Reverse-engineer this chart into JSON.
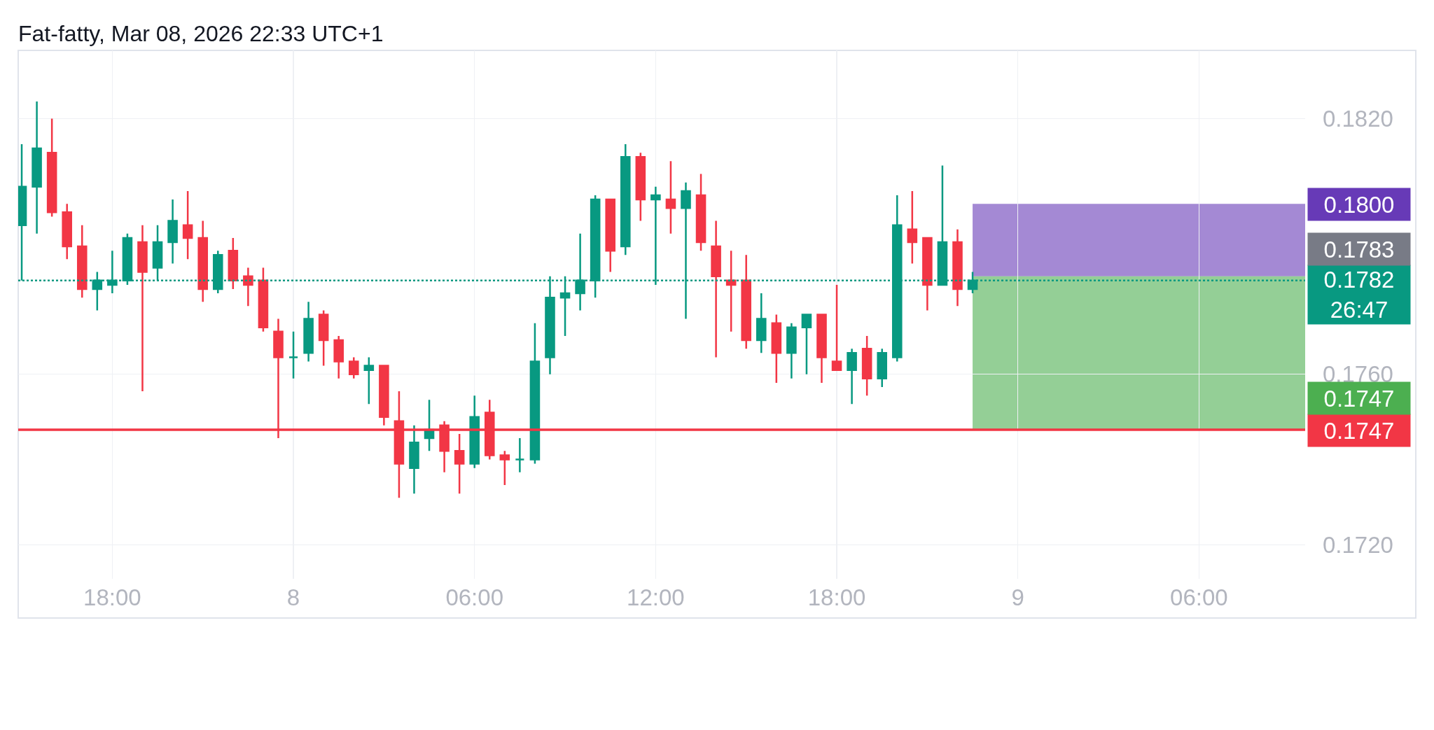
{
  "chart_data": {
    "type": "candlestick",
    "title": "Fat-fatty, Mar 08, 2026 22:33 UTC+1",
    "x": [
      "2026-03-07T15:00",
      "2026-03-07T15:30",
      "2026-03-07T16:00",
      "2026-03-07T16:30",
      "2026-03-07T17:00",
      "2026-03-07T17:30",
      "2026-03-07T18:00",
      "2026-03-07T18:30",
      "2026-03-07T19:00",
      "2026-03-07T19:30",
      "2026-03-07T20:00",
      "2026-03-07T20:30",
      "2026-03-07T21:00",
      "2026-03-07T21:30",
      "2026-03-07T22:00",
      "2026-03-07T22:30",
      "2026-03-07T23:00",
      "2026-03-07T23:30",
      "2026-03-08T00:00",
      "2026-03-08T00:30",
      "2026-03-08T01:00",
      "2026-03-08T01:30",
      "2026-03-08T02:00",
      "2026-03-08T02:30",
      "2026-03-08T03:00",
      "2026-03-08T03:30",
      "2026-03-08T04:00",
      "2026-03-08T04:30",
      "2026-03-08T05:00",
      "2026-03-08T05:30",
      "2026-03-08T06:00",
      "2026-03-08T06:30",
      "2026-03-08T07:00",
      "2026-03-08T07:30",
      "2026-03-08T08:00",
      "2026-03-08T08:30",
      "2026-03-08T09:00",
      "2026-03-08T09:30",
      "2026-03-08T10:00",
      "2026-03-08T10:30",
      "2026-03-08T11:00",
      "2026-03-08T11:30",
      "2026-03-08T12:00",
      "2026-03-08T12:30",
      "2026-03-08T13:00",
      "2026-03-08T13:30",
      "2026-03-08T14:00",
      "2026-03-08T14:30",
      "2026-03-08T15:00",
      "2026-03-08T15:30",
      "2026-03-08T16:00",
      "2026-03-08T16:30",
      "2026-03-08T17:00",
      "2026-03-08T17:30",
      "2026-03-08T18:00",
      "2026-03-08T18:30",
      "2026-03-08T19:00",
      "2026-03-08T19:30",
      "2026-03-08T20:00",
      "2026-03-08T20:30",
      "2026-03-08T21:00",
      "2026-03-08T21:30",
      "2026-03-08T22:00",
      "2026-03-08T22:30"
    ],
    "ohlc": [
      [
        0.1795,
        0.1814,
        0.1782,
        0.1804
      ],
      [
        0.1804,
        0.1824,
        0.1793,
        0.1813
      ],
      [
        0.1812,
        0.182,
        0.1797,
        0.1798
      ],
      [
        0.1798,
        0.18,
        0.1787,
        0.179
      ],
      [
        0.179,
        0.1795,
        0.1778,
        0.178
      ],
      [
        0.178,
        0.1784,
        0.1775,
        0.1782
      ],
      [
        0.1781,
        0.1789,
        0.1779,
        0.1782
      ],
      [
        0.1782,
        0.1793,
        0.1781,
        0.1792
      ],
      [
        0.1791,
        0.1795,
        0.1756,
        0.1784
      ],
      [
        0.1785,
        0.1795,
        0.1782,
        0.1791
      ],
      [
        0.1791,
        0.1801,
        0.1786,
        0.1796
      ],
      [
        0.1795,
        0.1803,
        0.1787,
        0.1792
      ],
      [
        0.1792,
        0.1796,
        0.1777,
        0.178
      ],
      [
        0.178,
        0.1789,
        0.1779,
        0.1788
      ],
      [
        0.1789,
        0.1792,
        0.178,
        0.1782
      ],
      [
        0.1783,
        0.1785,
        0.1776,
        0.1781
      ],
      [
        0.1782,
        0.1785,
        0.177,
        0.1771
      ],
      [
        0.177,
        0.1773,
        0.1745,
        0.1764
      ],
      [
        0.1764,
        0.177,
        0.1759,
        0.1764
      ],
      [
        0.1765,
        0.1777,
        0.1763,
        0.1773
      ],
      [
        0.1774,
        0.1775,
        0.1762,
        0.1768
      ],
      [
        0.1768,
        0.1769,
        0.1759,
        0.1763
      ],
      [
        0.1763,
        0.1764,
        0.1759,
        0.176
      ],
      [
        0.1761,
        0.1764,
        0.1753,
        0.1762
      ],
      [
        0.1762,
        0.1762,
        0.1748,
        0.175
      ],
      [
        0.1749,
        0.1756,
        0.1731,
        0.1739
      ],
      [
        0.1738,
        0.1748,
        0.1732,
        0.1744
      ],
      [
        0.1745,
        0.1754,
        0.1742,
        0.1747
      ],
      [
        0.1748,
        0.1749,
        0.1737,
        0.1742
      ],
      [
        0.1742,
        0.1746,
        0.1732,
        0.1739
      ],
      [
        0.1739,
        0.1755,
        0.1738,
        0.175
      ],
      [
        0.1751,
        0.1754,
        0.174,
        0.1741
      ],
      [
        0.1741,
        0.1742,
        0.1734,
        0.174
      ],
      [
        0.174,
        0.1745,
        0.1737,
        0.174
      ],
      [
        0.174,
        0.1772,
        0.1739,
        0.1763
      ],
      [
        0.1764,
        0.1783,
        0.176,
        0.1778
      ],
      [
        0.1778,
        0.1783,
        0.1769,
        0.1779
      ],
      [
        0.1779,
        0.1793,
        0.1775,
        0.1782
      ],
      [
        0.1782,
        0.1802,
        0.1778,
        0.1801
      ],
      [
        0.1801,
        0.1801,
        0.1784,
        0.1789
      ],
      [
        0.179,
        0.1814,
        0.1788,
        0.1811
      ],
      [
        0.1811,
        0.1812,
        0.1796,
        0.1801
      ],
      [
        0.1801,
        0.1804,
        0.1781,
        0.1802
      ],
      [
        0.1801,
        0.181,
        0.1793,
        0.1799
      ],
      [
        0.1799,
        0.1805,
        0.1773,
        0.1803
      ],
      [
        0.1802,
        0.1807,
        0.1789,
        0.1791
      ],
      [
        0.179,
        0.1796,
        0.1764,
        0.1783
      ],
      [
        0.1782,
        0.1789,
        0.177,
        0.1781
      ],
      [
        0.1782,
        0.1788,
        0.1766,
        0.1768
      ],
      [
        0.1768,
        0.1779,
        0.1765,
        0.1773
      ],
      [
        0.1772,
        0.1774,
        0.1758,
        0.1765
      ],
      [
        0.1765,
        0.1772,
        0.1759,
        0.1771
      ],
      [
        0.1771,
        0.1774,
        0.176,
        0.1774
      ],
      [
        0.1774,
        0.1774,
        0.1758,
        0.1764
      ],
      [
        0.1763,
        0.1781,
        0.1761,
        0.1761
      ],
      [
        0.1761,
        0.1766,
        0.1753,
        0.1765
      ],
      [
        0.1766,
        0.1769,
        0.1755,
        0.1759
      ],
      [
        0.1759,
        0.1766,
        0.1757,
        0.1765
      ],
      [
        0.1764,
        0.1802,
        0.1763,
        0.1795
      ],
      [
        0.1794,
        0.1803,
        0.1786,
        0.1791
      ],
      [
        0.1792,
        0.1792,
        0.1775,
        0.1781
      ],
      [
        0.1781,
        0.1809,
        0.1781,
        0.1791
      ],
      [
        0.1791,
        0.1794,
        0.1776,
        0.178
      ],
      [
        0.178,
        0.1784,
        0.1779,
        0.1782
      ]
    ],
    "colors": [
      "#089981",
      "#089981",
      "#f23645",
      "#f23645",
      "#f23645",
      "#089981",
      "#089981",
      "#089981",
      "#f23645",
      "#089981",
      "#089981",
      "#f23645",
      "#f23645",
      "#089981",
      "#f23645",
      "#f23645",
      "#f23645",
      "#f23645",
      "#089981",
      "#089981",
      "#f23645",
      "#f23645",
      "#f23645",
      "#089981",
      "#f23645",
      "#f23645",
      "#089981",
      "#089981",
      "#f23645",
      "#f23645",
      "#089981",
      "#f23645",
      "#f23645",
      "#089981",
      "#089981",
      "#089981",
      "#089981",
      "#089981",
      "#089981",
      "#f23645",
      "#089981",
      "#f23645",
      "#089981",
      "#f23645",
      "#089981",
      "#f23645",
      "#f23645",
      "#f23645",
      "#f23645",
      "#089981",
      "#f23645",
      "#089981",
      "#089981",
      "#f23645",
      "#f23645",
      "#089981",
      "#f23645",
      "#089981",
      "#089981",
      "#f23645",
      "#f23645",
      "#089981",
      "#f23645",
      "#089981"
    ],
    "xlim": [
      "2026-03-07T14:53",
      "2026-03-09T09:31"
    ],
    "xticks": [
      {
        "value": "2026-03-07T18:00",
        "label": "18:00"
      },
      {
        "value": "2026-03-08",
        "label": "8"
      },
      {
        "value": "2026-03-08T06:00",
        "label": "06:00"
      },
      {
        "value": "2026-03-08T12:00",
        "label": "12:00"
      },
      {
        "value": "2026-03-08T18:00",
        "label": "18:00"
      },
      {
        "value": "2026-03-09",
        "label": "9"
      },
      {
        "value": "2026-03-09T06:00",
        "label": "06:00"
      }
    ],
    "ylim": [
      0.1712,
      0.1836
    ],
    "yticks": [
      {
        "value": 0.172,
        "label": "0.1720"
      },
      {
        "value": 0.176,
        "label": "0.1760"
      },
      {
        "value": 0.182,
        "label": "0.1820"
      }
    ],
    "grid": true,
    "bands": [
      {
        "axis": "y",
        "from": 0.1783,
        "to": 0.18,
        "label": "0.1800",
        "color": "#673ab7"
      },
      {
        "axis": "y",
        "from": 0.1783,
        "to": 0.1747,
        "label": "0.1747",
        "color": "#4caf50"
      }
    ],
    "ref_lines": [
      {
        "axis": "y",
        "value": 0.1747,
        "label": "0.1747",
        "color": "#f23645"
      },
      {
        "axis": "y",
        "value": 0.1782,
        "label": "0.1782\n26:47",
        "color": "#089981",
        "line_style": "dotted"
      }
    ],
    "annotations": [
      "0.1783"
    ]
  }
}
